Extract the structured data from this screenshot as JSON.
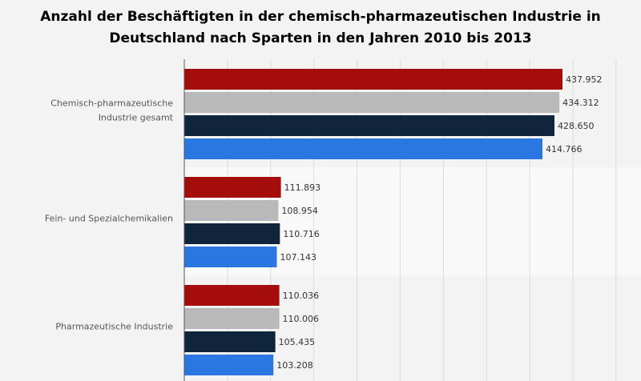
{
  "chart_data": {
    "type": "bar",
    "orientation": "horizontal",
    "title": "Anzahl der Beschäftigten in der chemisch-pharmazeutischen Industrie in Deutschland nach Sparten in den Jahren 2010 bis 2013",
    "title_lines": [
      "Anzahl der Beschäftigten in der chemisch-pharmazeutischen Industrie in",
      "Deutschland nach Sparten in den Jahren 2010 bis 2013"
    ],
    "categories": [
      [
        "Chemisch-pharmazeutische",
        "Industrie gesamt"
      ],
      [
        "Fein- und Spezialchemikalien"
      ],
      [
        "Pharmazeutische Industrie"
      ]
    ],
    "series": [
      {
        "color": "#a50c0c",
        "values": [
          437952,
          111893,
          110036
        ],
        "labels": [
          "437.952",
          "111.893",
          "110.036"
        ]
      },
      {
        "color": "#b9b9b9",
        "values": [
          434312,
          108954,
          110006
        ],
        "labels": [
          "434.312",
          "108.954",
          "110.006"
        ]
      },
      {
        "color": "#10243c",
        "values": [
          428650,
          110716,
          105435
        ],
        "labels": [
          "428.650",
          "110.716",
          "105.435"
        ]
      },
      {
        "color": "#2a77e1",
        "values": [
          414766,
          107143,
          103208
        ],
        "labels": [
          "414.766",
          "107.143",
          "103.208"
        ]
      }
    ],
    "xlim": [
      0,
      500000
    ],
    "grid": true,
    "legend": "none"
  }
}
